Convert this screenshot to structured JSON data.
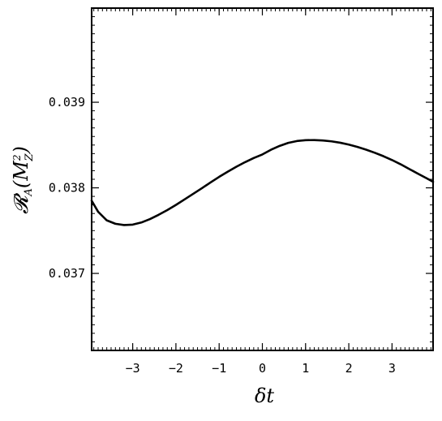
{
  "chart_data": {
    "type": "line",
    "title": "",
    "xlabel": "δt",
    "ylabel": {
      "script_letter": "𝓡",
      "subscript": "A",
      "open_paren": "(",
      "mass_letter": "M",
      "mass_superscript": "2",
      "mass_subscript": "Z",
      "close_paren": ")"
    },
    "xlim": [
      -3.95,
      3.95
    ],
    "ylim": [
      0.0361,
      0.0401
    ],
    "xticks": [
      -3,
      -2,
      -1,
      0,
      1,
      2,
      3
    ],
    "xtick_labels": [
      "−3",
      "−2",
      "−1",
      "0",
      "1",
      "2",
      "3"
    ],
    "yticks": [
      0.037,
      0.038,
      0.039
    ],
    "ytick_labels": [
      "0.037",
      "0.038",
      "0.039"
    ],
    "grid": false,
    "series": [
      {
        "color": "#000000",
        "x": [
          -3.95,
          -3.8,
          -3.6,
          -3.4,
          -3.2,
          -3.0,
          -2.8,
          -2.6,
          -2.4,
          -2.2,
          -2.0,
          -1.8,
          -1.6,
          -1.4,
          -1.2,
          -1.0,
          -0.8,
          -0.6,
          -0.4,
          -0.2,
          0.0,
          0.2,
          0.4,
          0.6,
          0.8,
          1.0,
          1.2,
          1.4,
          1.6,
          1.8,
          2.0,
          2.2,
          2.4,
          2.6,
          2.8,
          3.0,
          3.2,
          3.4,
          3.6,
          3.8,
          3.95
        ],
        "y": [
          0.03785,
          0.03772,
          0.03762,
          0.03758,
          0.037565,
          0.03757,
          0.037595,
          0.037635,
          0.037685,
          0.03774,
          0.0378,
          0.037865,
          0.03793,
          0.037995,
          0.038063,
          0.038128,
          0.038189,
          0.038247,
          0.0383,
          0.038348,
          0.03839,
          0.038445,
          0.03849,
          0.038525,
          0.038547,
          0.038557,
          0.038558,
          0.038553,
          0.038543,
          0.038527,
          0.038505,
          0.038478,
          0.038446,
          0.03841,
          0.03837,
          0.038325,
          0.038275,
          0.03822,
          0.038165,
          0.038112,
          0.03807
        ]
      }
    ]
  }
}
